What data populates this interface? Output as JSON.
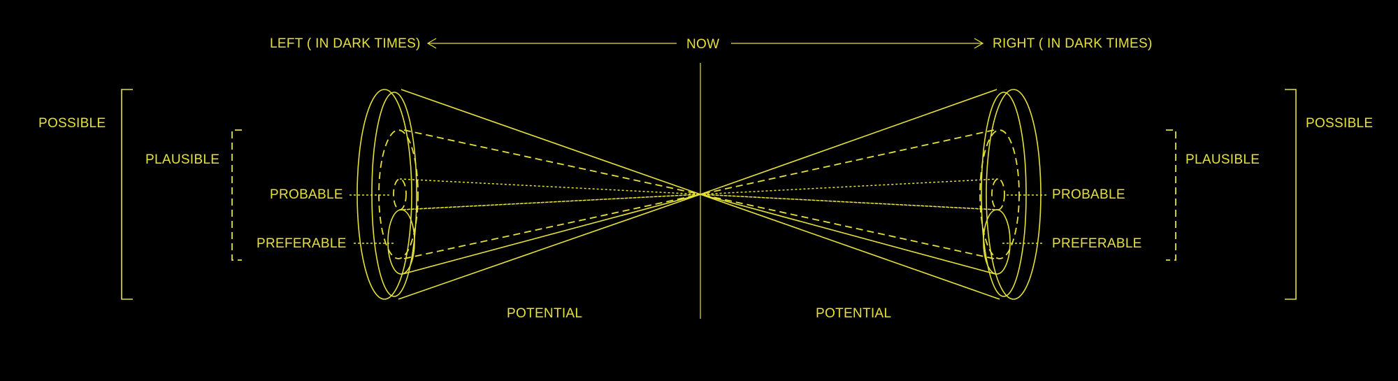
{
  "colors": {
    "background": "#000000",
    "line": "#e6e23a"
  },
  "header": {
    "left": "LEFT ( IN DARK TIMES)",
    "center": "NOW",
    "right": "RIGHT ( IN DARK TIMES)"
  },
  "left": {
    "possible": "POSSIBLE",
    "plausible": "PLAUSIBLE",
    "probable": "PROBABLE",
    "preferable": "PREFERABLE",
    "potential": "POTENTIAL"
  },
  "right": {
    "possible": "POSSIBLE",
    "plausible": "PLAUSIBLE",
    "probable": "PROBABLE",
    "preferable": "PREFERABLE",
    "potential": "POTENTIAL"
  }
}
